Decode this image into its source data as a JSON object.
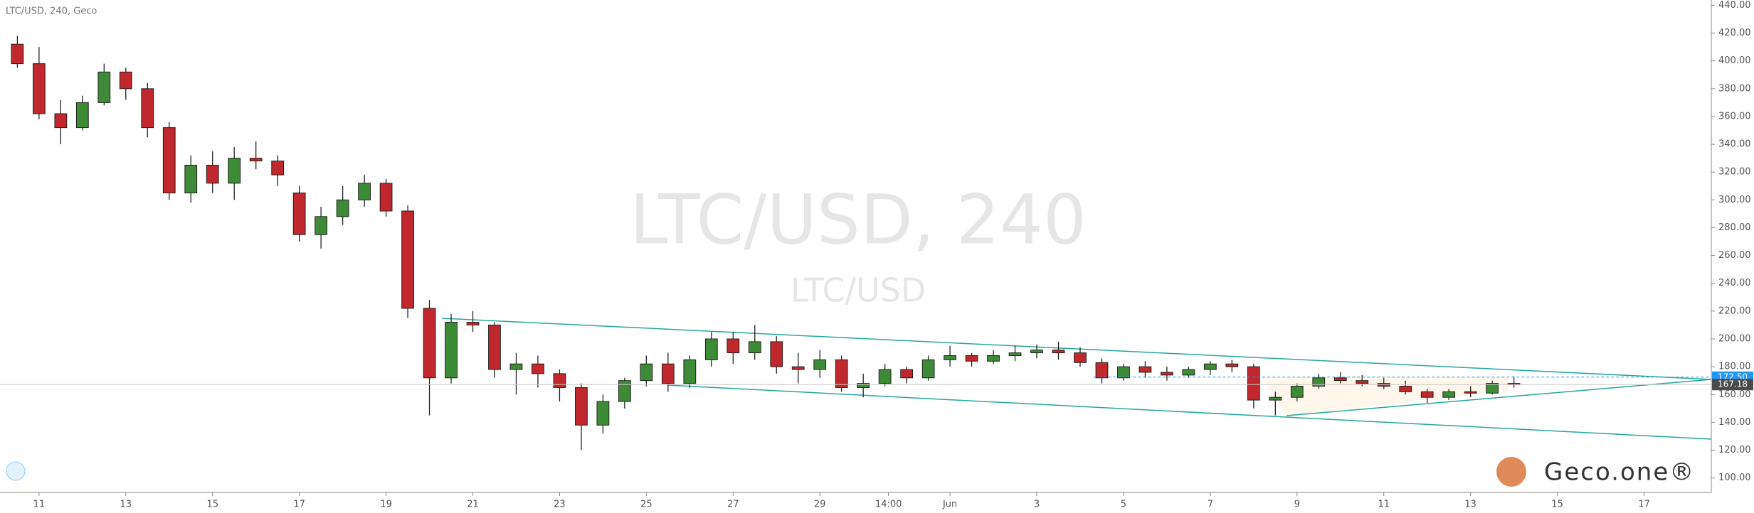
{
  "chart_data": {
    "type": "candlestick",
    "title": "LTC/USD, 240, Geco",
    "watermark": "LTC/USD, 240",
    "watermark_subtitle": "LTC/USD",
    "logo": "Geco.one®",
    "up_color": "#3d8b37",
    "down_color": "#c0282d",
    "x": [
      10.5,
      11,
      11.5,
      12,
      12.5,
      13,
      13.5,
      14,
      14.5,
      15,
      15.5,
      16,
      16.5,
      17,
      17.5,
      18,
      18.5,
      19,
      19.5,
      20,
      20.5,
      21,
      21.5,
      22,
      22.5,
      23,
      23.5,
      24,
      24.5,
      25,
      25.5,
      26,
      26.5,
      27,
      27.5,
      28,
      28.5,
      29,
      29.5,
      30,
      30.5,
      31,
      31.5,
      32,
      32.5,
      33,
      33.5,
      34,
      34.5,
      35,
      35.5,
      36,
      36.5,
      37,
      37.5,
      38,
      38.5,
      39,
      39.5,
      40,
      40.5,
      41,
      41.5,
      42,
      42.5,
      43,
      43.5,
      44,
      44.5,
      45
    ],
    "ohlc": [
      [
        412,
        418,
        395,
        398
      ],
      [
        398,
        410,
        358,
        362
      ],
      [
        362,
        372,
        340,
        352
      ],
      [
        352,
        375,
        350,
        370
      ],
      [
        370,
        398,
        368,
        392
      ],
      [
        392,
        395,
        372,
        380
      ],
      [
        380,
        384,
        345,
        352
      ],
      [
        352,
        356,
        300,
        305
      ],
      [
        305,
        332,
        298,
        325
      ],
      [
        325,
        335,
        305,
        312
      ],
      [
        312,
        338,
        300,
        330
      ],
      [
        330,
        342,
        322,
        328
      ],
      [
        328,
        332,
        310,
        318
      ],
      [
        305,
        310,
        270,
        275
      ],
      [
        275,
        295,
        265,
        288
      ],
      [
        288,
        310,
        282,
        300
      ],
      [
        300,
        318,
        295,
        312
      ],
      [
        312,
        315,
        288,
        292
      ],
      [
        292,
        296,
        215,
        222
      ],
      [
        222,
        228,
        145,
        172
      ],
      [
        172,
        218,
        168,
        212
      ],
      [
        212,
        220,
        205,
        210
      ],
      [
        210,
        212,
        172,
        178
      ],
      [
        178,
        190,
        160,
        182
      ],
      [
        182,
        188,
        165,
        175
      ],
      [
        175,
        178,
        155,
        165
      ],
      [
        165,
        168,
        120,
        138
      ],
      [
        138,
        160,
        132,
        155
      ],
      [
        155,
        172,
        150,
        170
      ],
      [
        170,
        188,
        166,
        182
      ],
      [
        182,
        190,
        162,
        168
      ],
      [
        168,
        188,
        165,
        185
      ],
      [
        185,
        205,
        180,
        200
      ],
      [
        200,
        205,
        182,
        190
      ],
      [
        190,
        210,
        185,
        198
      ],
      [
        198,
        202,
        175,
        180
      ],
      [
        180,
        190,
        168,
        178
      ],
      [
        178,
        192,
        172,
        185
      ],
      [
        185,
        188,
        162,
        165
      ],
      [
        165,
        175,
        158,
        168
      ],
      [
        168,
        182,
        166,
        178
      ],
      [
        178,
        180,
        168,
        172
      ],
      [
        172,
        188,
        170,
        185
      ],
      [
        185,
        195,
        180,
        188
      ],
      [
        188,
        190,
        180,
        184
      ],
      [
        184,
        192,
        182,
        188
      ],
      [
        188,
        195,
        184,
        190
      ],
      [
        190,
        196,
        186,
        192
      ],
      [
        192,
        198,
        185,
        190
      ],
      [
        190,
        194,
        180,
        183
      ],
      [
        183,
        186,
        168,
        172
      ],
      [
        172,
        182,
        170,
        180
      ],
      [
        180,
        184,
        172,
        176
      ],
      [
        176,
        180,
        170,
        174
      ],
      [
        174,
        180,
        172,
        178
      ],
      [
        178,
        184,
        174,
        182
      ],
      [
        182,
        185,
        176,
        180
      ],
      [
        180,
        182,
        150,
        156
      ],
      [
        156,
        162,
        145,
        158
      ],
      [
        158,
        168,
        155,
        166
      ],
      [
        166,
        175,
        164,
        172
      ],
      [
        172,
        176,
        168,
        170
      ],
      [
        170,
        174,
        166,
        168
      ],
      [
        168,
        172,
        164,
        166
      ],
      [
        166,
        170,
        160,
        162
      ],
      [
        162,
        164,
        154,
        158
      ],
      [
        158,
        164,
        156,
        162
      ],
      [
        162,
        166,
        158,
        161
      ],
      [
        161,
        170,
        160,
        168
      ],
      [
        168,
        173,
        165,
        167.18
      ]
    ],
    "xlim": [
      10.1,
      49.55
    ],
    "ylim": [
      89.6,
      443.8
    ],
    "xticks": [
      11,
      13,
      15,
      17,
      19,
      21,
      23,
      25,
      27,
      29,
      {
        "value": 30.583,
        "label": "14:00"
      },
      {
        "value": 32,
        "label": "Jun"
      },
      {
        "value": 34,
        "label": "3"
      },
      {
        "value": 36,
        "label": "5"
      },
      {
        "value": 38,
        "label": "7"
      },
      {
        "value": 40,
        "label": "9"
      },
      {
        "value": 42,
        "label": "11"
      },
      {
        "value": 44,
        "label": "13"
      },
      {
        "value": 46,
        "label": "15"
      },
      {
        "value": 48,
        "label": "17"
      }
    ],
    "yticks": [
      {
        "value": 100,
        "label": "100.00"
      },
      {
        "value": 120,
        "label": "120.00"
      },
      {
        "value": 140,
        "label": "140.00"
      },
      {
        "value": 160,
        "label": "160.00"
      },
      {
        "value": 180,
        "label": "180.00"
      },
      {
        "value": 200,
        "label": "200.00"
      },
      {
        "value": 220,
        "label": "220.00"
      },
      {
        "value": 240,
        "label": "240.00"
      },
      {
        "value": 260,
        "label": "260.00"
      },
      {
        "value": 280,
        "label": "280.00"
      },
      {
        "value": 300,
        "label": "300.00"
      },
      {
        "value": 320,
        "label": "320.00"
      },
      {
        "value": 340,
        "label": "340.00"
      },
      {
        "value": 360,
        "label": "360.00"
      },
      {
        "value": 380,
        "label": "380.00"
      },
      {
        "value": 400,
        "label": "400.00"
      },
      {
        "value": 420,
        "label": "420.00"
      },
      {
        "value": 440,
        "label": "440.00"
      }
    ],
    "price_labels": [
      {
        "value": 172.5,
        "label": "172.50",
        "color": "#2196f3"
      },
      {
        "value": 167.18,
        "label": "167.18",
        "color": "#4a4a4a"
      }
    ]
  }
}
